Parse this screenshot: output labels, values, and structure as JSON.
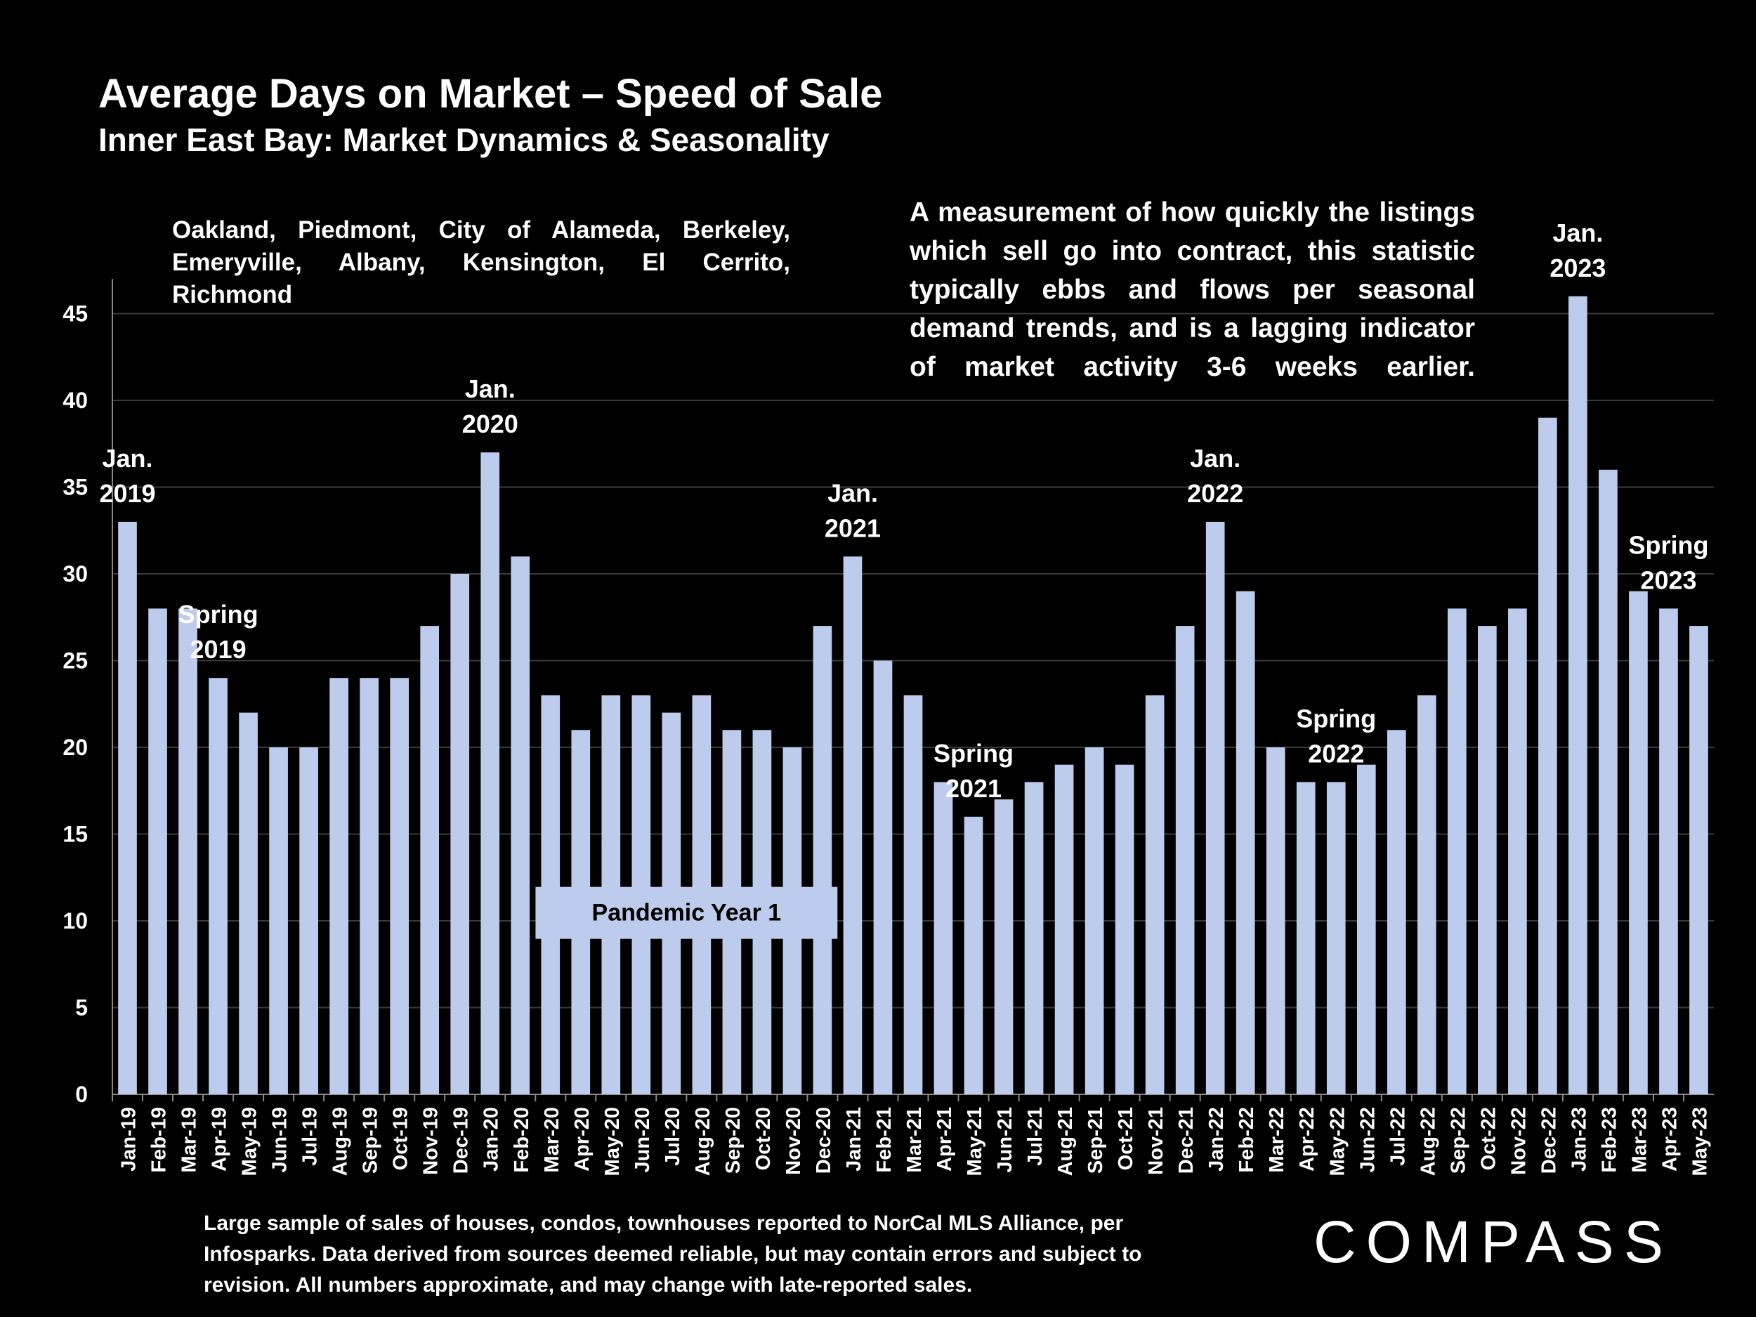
{
  "header": {
    "title": "Average Days on Market – Speed of Sale",
    "subtitle": "Inner East Bay: Market Dynamics & Seasonality"
  },
  "region_lines": [
    "Oakland, Piedmont, City of Alameda, Berkeley,",
    "Emeryville, Albany, Kensington, El Cerrito, Richmond"
  ],
  "description_lines": [
    "A measurement of how quickly the listings",
    "which sell go into contract, this statistic",
    "typically ebbs and flows per seasonal",
    "demand trends, and is a lagging indicator",
    "of market activity 3-6 weeks earlier."
  ],
  "footnote_lines": [
    "Large sample of sales of houses, condos, townhouses reported to NorCal MLS Alliance, per",
    "Infosparks. Data derived from sources deemed reliable, but may contain errors and subject to",
    "revision. All numbers approximate, and may change with late-reported sales."
  ],
  "logo": "COMPASS",
  "colors": {
    "background": "#000000",
    "bar": "#bdcced",
    "text": "#ffffff",
    "grid": "#3a3a3a"
  },
  "chart_data": {
    "type": "bar",
    "categories": [
      "Jan-19",
      "Feb-19",
      "Mar-19",
      "Apr-19",
      "May-19",
      "Jun-19",
      "Jul-19",
      "Aug-19",
      "Sep-19",
      "Oct-19",
      "Nov-19",
      "Dec-19",
      "Jan-20",
      "Feb-20",
      "Mar-20",
      "Apr-20",
      "May-20",
      "Jun-20",
      "Jul-20",
      "Aug-20",
      "Sep-20",
      "Oct-20",
      "Nov-20",
      "Dec-20",
      "Jan-21",
      "Feb-21",
      "Mar-21",
      "Apr-21",
      "May-21",
      "Jun-21",
      "Jul-21",
      "Aug-21",
      "Sep-21",
      "Oct-21",
      "Nov-21",
      "Dec-21",
      "Jan-22",
      "Feb-22",
      "Mar-22",
      "Apr-22",
      "May-22",
      "Jun-22",
      "Jul-22",
      "Aug-22",
      "Sep-22",
      "Oct-22",
      "Nov-22",
      "Dec-22",
      "Jan-23",
      "Feb-23",
      "Mar-23",
      "Apr-23",
      "May-23"
    ],
    "values": [
      33,
      28,
      28,
      24,
      22,
      20,
      20,
      24,
      24,
      24,
      27,
      30,
      37,
      31,
      23,
      21,
      23,
      23,
      22,
      23,
      21,
      21,
      20,
      27,
      31,
      25,
      23,
      18,
      16,
      17,
      18,
      19,
      20,
      19,
      23,
      27,
      33,
      29,
      20,
      18,
      18,
      19,
      21,
      23,
      28,
      27,
      28,
      39,
      46,
      36,
      29,
      28,
      27
    ],
    "ylim": [
      0,
      47
    ],
    "yticks": [
      0,
      5,
      10,
      15,
      20,
      25,
      30,
      35,
      40,
      45
    ],
    "grid": true,
    "annotations": [
      {
        "category": "Jan-19",
        "lines": [
          "Jan.",
          "2019"
        ]
      },
      {
        "category": "Apr-19",
        "lines": [
          "Spring",
          "2019"
        ]
      },
      {
        "category": "Jan-20",
        "lines": [
          "Jan.",
          "2020"
        ]
      },
      {
        "category": "Jan-21",
        "lines": [
          "Jan.",
          "2021"
        ]
      },
      {
        "category": "May-21",
        "lines": [
          "Spring",
          "2021"
        ]
      },
      {
        "category": "Jan-22",
        "lines": [
          "Jan.",
          "2022"
        ]
      },
      {
        "category": "May-22",
        "lines": [
          "Spring",
          "2022"
        ]
      },
      {
        "category": "Jan-23",
        "lines": [
          "Jan.",
          "2023"
        ]
      },
      {
        "category": "Apr-23",
        "lines": [
          "Spring",
          "2023"
        ]
      }
    ],
    "callout": {
      "text": "Pandemic Year 1",
      "from": "Mar-20",
      "to": "Dec-20",
      "value": 10.5
    }
  }
}
